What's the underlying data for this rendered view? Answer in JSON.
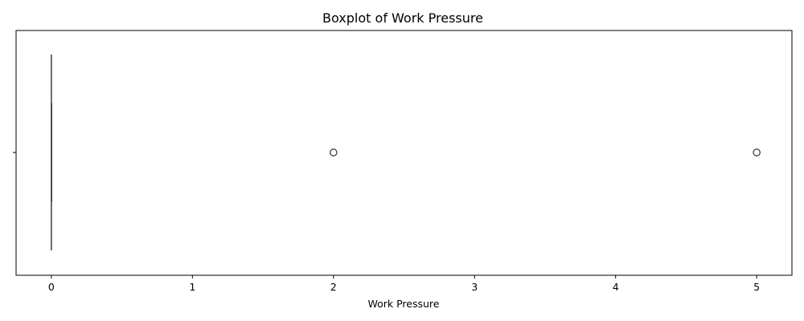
{
  "chart_data": {
    "type": "boxplot",
    "title": "Boxplot of Work Pressure",
    "xlabel": "Work Pressure",
    "ylabel": "",
    "xlim": [
      -0.25,
      5.25
    ],
    "xticks": [
      0,
      1,
      2,
      3,
      4,
      5
    ],
    "xtick_labels": [
      "0",
      "1",
      "2",
      "3",
      "4",
      "5"
    ],
    "grid": false,
    "box": {
      "q1": 0,
      "median": 0,
      "q3": 0,
      "whisker_low": 0,
      "whisker_high": 0
    },
    "outliers": [
      2,
      5
    ],
    "colors": {
      "box_line": "#3f3f3f",
      "outlier_edge": "#3f3f3f",
      "axis": "#000000"
    }
  }
}
